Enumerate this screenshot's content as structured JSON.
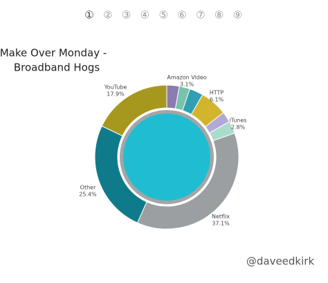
{
  "pages": [
    "①",
    "②",
    "③",
    "④",
    "⑤",
    "⑥",
    "⑦",
    "⑧",
    "⑨"
  ],
  "chart_data": {
    "type": "donut",
    "title": [
      "Make Over Monday -",
      "Broadband Hogs"
    ],
    "categories": [
      null,
      null,
      "Amazon Video",
      "HTTP",
      null,
      "iTunes",
      "Netflix",
      "Other",
      "YouTube"
    ],
    "values": [
      2.8,
      2.4,
      3.1,
      6.1,
      2.4,
      2.8,
      37.1,
      25.4,
      17.9
    ],
    "value_labels": [
      null,
      null,
      "3.1%",
      "6.1%",
      null,
      "2.8%",
      "37.1%",
      "25.4%",
      "17.9%"
    ],
    "colors": [
      "#8b7bb2",
      "#79c2ab",
      "#2f9fb3",
      "#d2b52c",
      "#b3a9d9",
      "#a9dcc9",
      "#9b9fa2",
      "#0f7b8a",
      "#a6981e"
    ]
  },
  "credit": "@daveedkirk"
}
